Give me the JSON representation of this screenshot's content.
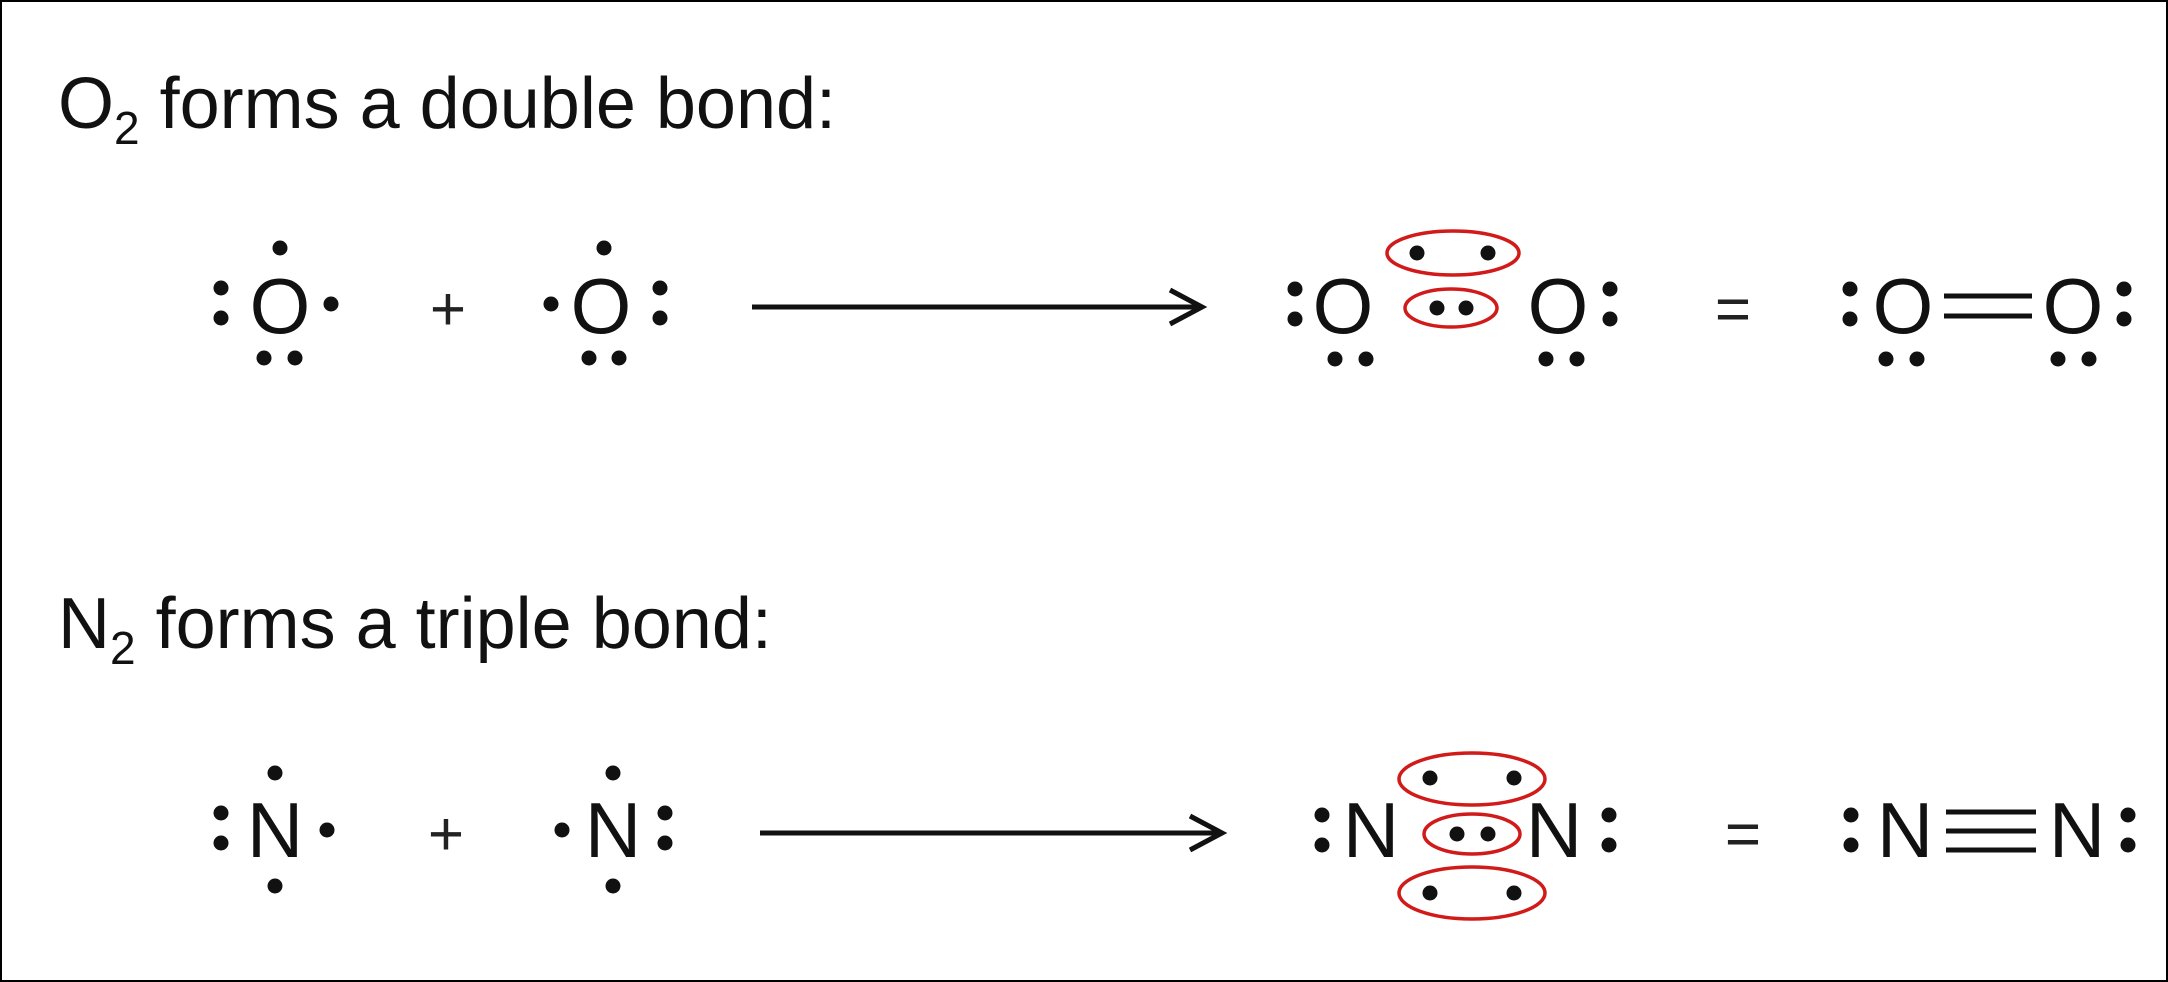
{
  "oxygen_section": {
    "title_prefix": "O",
    "title_subscript": "2",
    "title_rest": " forms a double bond:",
    "atom": "O",
    "plus": "+",
    "equals": "="
  },
  "nitrogen_section": {
    "title_prefix": "N",
    "title_subscript": "2",
    "title_rest": " forms a triple bond:",
    "atom": "N",
    "plus": "+",
    "equals": "="
  },
  "colors": {
    "highlight": "#d11a1a",
    "ink": "#111111",
    "background": "#ffffff"
  }
}
